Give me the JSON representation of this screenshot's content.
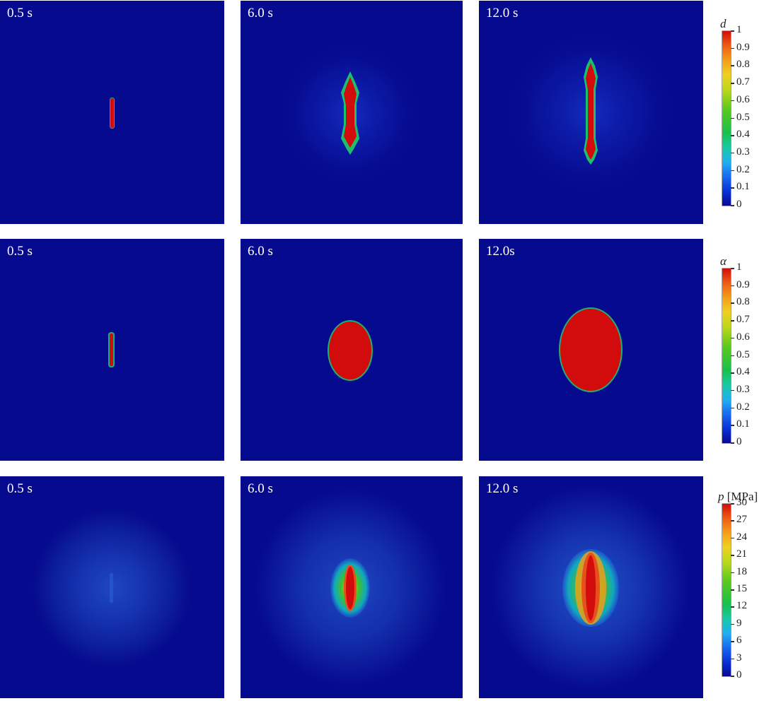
{
  "rows": [
    {
      "time_labels": [
        "0.5 s",
        "6.0 s",
        "12.0 s"
      ]
    },
    {
      "time_labels": [
        "0.5 s",
        "6.0 s",
        "12.0s"
      ]
    },
    {
      "time_labels": [
        "0.5 s",
        "6.0 s",
        "12.0 s"
      ]
    }
  ],
  "colorbars": [
    {
      "symbol": "d",
      "unit": "",
      "ticks": [
        "0",
        "0.1",
        "0.2",
        "0.3",
        "0.4",
        "0.5",
        "0.6",
        "0.7",
        "0.8",
        "0.9",
        "1"
      ]
    },
    {
      "symbol": "α",
      "unit": "",
      "ticks": [
        "0",
        "0.1",
        "0.2",
        "0.3",
        "0.4",
        "0.5",
        "0.6",
        "0.7",
        "0.8",
        "0.9",
        "1"
      ]
    },
    {
      "symbol": "p",
      "unit": "[MPa]",
      "ticks": [
        "0",
        "3",
        "6",
        "9",
        "12",
        "15",
        "18",
        "21",
        "24",
        "27",
        "30"
      ]
    }
  ],
  "colors": {
    "background_field": "#060a8e",
    "max_value": "#d20c0c"
  }
}
